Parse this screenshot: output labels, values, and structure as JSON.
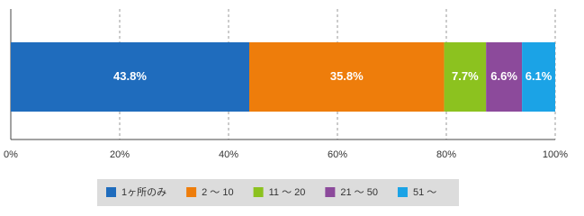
{
  "chart_data": {
    "type": "stacked-bar",
    "orientation": "horizontal",
    "series": [
      {
        "name": "1ヶ所のみ",
        "color": "#1f6cbd",
        "values": [
          43.8
        ],
        "value_labels": [
          "43.8%"
        ]
      },
      {
        "name": "2 ～ 10",
        "color": "#ee7d0b",
        "values": [
          35.8
        ],
        "value_labels": [
          "35.8%"
        ]
      },
      {
        "name": "11 ～ 20",
        "color": "#8cc21f",
        "values": [
          7.7
        ],
        "value_labels": [
          "7.7%"
        ]
      },
      {
        "name": "21 ～ 50",
        "color": "#8c4a9b",
        "values": [
          6.6
        ],
        "value_labels": [
          "6.6%"
        ]
      },
      {
        "name": "51 ～",
        "color": "#1ba3e6",
        "values": [
          6.1
        ],
        "value_labels": [
          "6.1%"
        ]
      }
    ],
    "xlim": [
      0,
      100
    ],
    "xticks": [
      {
        "value": 0,
        "label": "0%"
      },
      {
        "value": 20,
        "label": "20%"
      },
      {
        "value": 40,
        "label": "40%"
      },
      {
        "value": 60,
        "label": "60%"
      },
      {
        "value": 80,
        "label": "80%"
      },
      {
        "value": 100,
        "label": "100%"
      }
    ],
    "grid": true,
    "legend": "bottom"
  }
}
